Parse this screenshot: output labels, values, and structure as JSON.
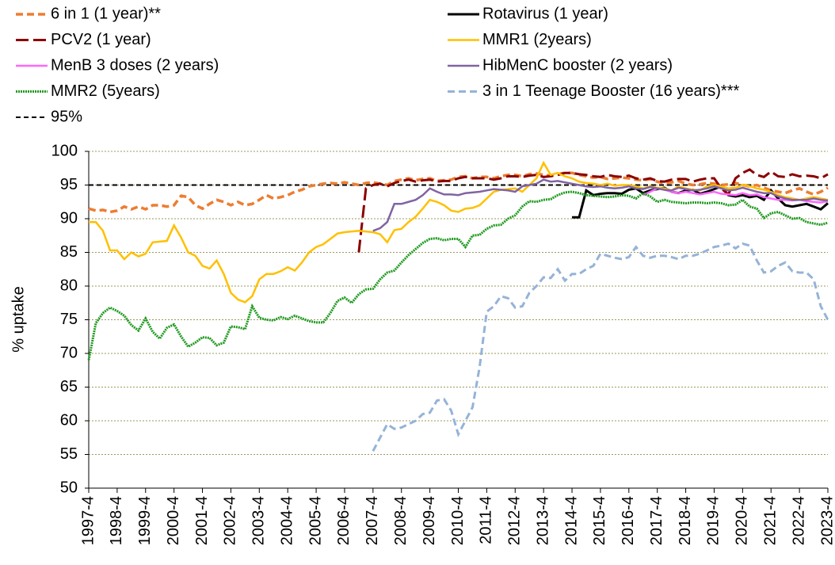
{
  "chart_data": {
    "type": "line",
    "y_label": "% uptake",
    "ylim": [
      50,
      100
    ],
    "yticks": [
      50,
      55,
      60,
      65,
      70,
      75,
      80,
      85,
      90,
      95,
      100
    ],
    "grid": true,
    "reference": {
      "name": "95%",
      "value": 95,
      "color": "#000000"
    },
    "categories": [
      "1997-4",
      null,
      null,
      null,
      "1998-4",
      null,
      null,
      null,
      "1999-4",
      null,
      null,
      null,
      "2000-4",
      null,
      null,
      null,
      "2001-4",
      null,
      null,
      null,
      "2002-4",
      null,
      null,
      null,
      "2003-4",
      null,
      null,
      null,
      "2004-4",
      null,
      null,
      null,
      "2005-4",
      null,
      null,
      null,
      "2006-4",
      null,
      null,
      null,
      "2007-4",
      null,
      null,
      null,
      "2008-4",
      null,
      null,
      null,
      "2009-4",
      null,
      null,
      null,
      "2010-4",
      null,
      null,
      null,
      "2011-4",
      null,
      null,
      null,
      "2012-4",
      null,
      null,
      null,
      "2013-4",
      null,
      null,
      null,
      "2014-4",
      null,
      null,
      null,
      "2015-4",
      null,
      null,
      null,
      "2016-4",
      null,
      null,
      null,
      "2017-4",
      null,
      null,
      null,
      "2018-4",
      null,
      null,
      null,
      "2019-4",
      null,
      null,
      null,
      "2020-4",
      null,
      null,
      null,
      "2021-4",
      null,
      null,
      null,
      "2022-4",
      null,
      null,
      null,
      "2023-4"
    ],
    "series": [
      {
        "name": "6 in 1 (1 year)**",
        "color": "#ed7d31",
        "values": [
          91.5,
          91.2,
          91.3,
          91.0,
          91.2,
          91.8,
          91.4,
          91.8,
          91.4,
          92.0,
          92.0,
          91.8,
          92.0,
          93.4,
          93.2,
          92.0,
          91.5,
          92.2,
          92.8,
          92.5,
          92.0,
          92.5,
          92.0,
          92.2,
          92.8,
          93.5,
          93.0,
          93.2,
          93.5,
          94.0,
          94.3,
          94.8,
          95.0,
          95.2,
          95.3,
          95.2,
          95.4,
          95.2,
          95.0,
          95.3,
          95.4,
          95.2,
          95.0,
          95.6,
          95.8,
          96.0,
          95.7,
          95.9,
          96.0,
          95.6,
          95.7,
          95.8,
          96.2,
          96.3,
          96.0,
          96.2,
          96.2,
          96.0,
          96.3,
          96.5,
          96.5,
          96.3,
          96.6,
          96.7,
          96.5,
          96.4,
          96.6,
          96.8,
          96.8,
          96.5,
          96.3,
          96.1,
          96.2,
          95.9,
          96.0,
          96.1,
          96.0,
          95.8,
          95.7,
          95.9,
          95.5,
          95.3,
          95.4,
          95.6,
          95.2,
          95.0,
          95.1,
          95.3,
          95.2,
          95.0,
          95.1,
          95.3,
          95.0,
          94.8,
          95.0,
          94.6,
          94.2,
          94.0,
          93.8,
          94.2,
          94.5,
          94.0,
          93.6,
          94.0,
          94.6
        ]
      },
      {
        "name": "Rotavirus (1 year)",
        "color": "#000000",
        "values": [
          null,
          null,
          null,
          null,
          null,
          null,
          null,
          null,
          null,
          null,
          null,
          null,
          null,
          null,
          null,
          null,
          null,
          null,
          null,
          null,
          null,
          null,
          null,
          null,
          null,
          null,
          null,
          null,
          null,
          null,
          null,
          null,
          null,
          null,
          null,
          null,
          null,
          null,
          null,
          null,
          null,
          null,
          null,
          null,
          null,
          null,
          null,
          null,
          null,
          null,
          null,
          null,
          null,
          null,
          null,
          null,
          null,
          null,
          null,
          null,
          null,
          null,
          null,
          null,
          null,
          null,
          null,
          null,
          90.2,
          90.2,
          94.2,
          93.5,
          93.7,
          93.8,
          93.8,
          93.7,
          94.3,
          94.5,
          93.8,
          94.2,
          94.4,
          94.6,
          94.0,
          93.8,
          94.2,
          94.3,
          93.7,
          94.0,
          94.4,
          94.8,
          93.5,
          93.3,
          93.5,
          93.2,
          93.4,
          92.8,
          94.2,
          93.0,
          92.0,
          91.8,
          92.0,
          92.2,
          91.8,
          91.4,
          92.3
        ]
      },
      {
        "name": "PCV2 (1 year)",
        "color": "#8b0000",
        "values": [
          null,
          null,
          null,
          null,
          null,
          null,
          null,
          null,
          null,
          null,
          null,
          null,
          null,
          null,
          null,
          null,
          null,
          null,
          null,
          null,
          null,
          null,
          null,
          null,
          null,
          null,
          null,
          null,
          null,
          null,
          null,
          null,
          null,
          null,
          null,
          null,
          null,
          null,
          85.0,
          94.5,
          95.0,
          95.2,
          94.8,
          95.3,
          95.6,
          95.8,
          95.5,
          95.7,
          95.8,
          95.5,
          95.6,
          95.6,
          96.0,
          96.2,
          96.0,
          96.0,
          96.0,
          95.8,
          96.0,
          96.3,
          96.3,
          96.2,
          96.4,
          96.5,
          96.2,
          96.3,
          96.5,
          96.8,
          96.8,
          96.6,
          96.5,
          96.3,
          96.2,
          96.5,
          96.3,
          96.2,
          96.4,
          96.0,
          95.8,
          96.0,
          95.6,
          95.5,
          95.8,
          95.9,
          95.9,
          95.5,
          95.8,
          96.0,
          96.0,
          94.5,
          93.6,
          96.0,
          96.8,
          97.3,
          96.5,
          96.2,
          97.0,
          96.3,
          96.2,
          96.6,
          96.3,
          96.4,
          96.3,
          96.0,
          96.6
        ]
      },
      {
        "name": "MMR1 (2years)",
        "color": "#ffc000",
        "values": [
          89.5,
          89.5,
          88.2,
          85.3,
          85.3,
          84.0,
          85.0,
          84.4,
          84.8,
          86.5,
          86.6,
          86.7,
          89.0,
          87.2,
          85.0,
          84.5,
          83.0,
          82.6,
          83.8,
          81.8,
          79.0,
          78.0,
          77.6,
          78.5,
          81.0,
          81.8,
          81.8,
          82.2,
          82.8,
          82.3,
          83.5,
          85.0,
          85.8,
          86.2,
          87.0,
          87.8,
          88.0,
          88.1,
          88.2,
          88.1,
          88.0,
          87.7,
          86.5,
          88.3,
          88.5,
          89.5,
          90.3,
          91.5,
          92.8,
          92.5,
          92.0,
          91.2,
          91.0,
          91.5,
          91.6,
          92.0,
          93.0,
          94.0,
          94.3,
          94.4,
          94.5,
          94.0,
          95.0,
          96.0,
          98.3,
          96.5,
          96.8,
          96.3,
          96.0,
          95.5,
          95.3,
          95.2,
          95.0,
          95.2,
          94.9,
          95.0,
          95.0,
          94.8,
          94.5,
          94.8,
          94.6,
          94.5,
          94.2,
          94.8,
          94.5,
          94.3,
          94.2,
          94.8,
          95.0,
          94.8,
          94.5,
          94.6,
          95.0,
          94.8,
          94.5,
          94.3,
          94.0,
          93.5,
          93.2,
          93.0,
          92.8,
          93.0,
          93.2,
          93.0,
          92.8
        ]
      },
      {
        "name": "MenB 3 doses (2 years)",
        "color": "#ff66ff",
        "values": [
          null,
          null,
          null,
          null,
          null,
          null,
          null,
          null,
          null,
          null,
          null,
          null,
          null,
          null,
          null,
          null,
          null,
          null,
          null,
          null,
          null,
          null,
          null,
          null,
          null,
          null,
          null,
          null,
          null,
          null,
          null,
          null,
          null,
          null,
          null,
          null,
          null,
          null,
          null,
          null,
          null,
          null,
          null,
          null,
          null,
          null,
          null,
          null,
          null,
          null,
          null,
          null,
          null,
          null,
          null,
          null,
          null,
          null,
          null,
          null,
          null,
          null,
          null,
          null,
          null,
          null,
          null,
          null,
          null,
          null,
          null,
          null,
          null,
          null,
          null,
          null,
          null,
          null,
          93.5,
          94.0,
          94.5,
          94.3,
          94.0,
          93.8,
          94.0,
          93.8,
          93.6,
          93.8,
          94.0,
          93.7,
          93.6,
          93.5,
          93.8,
          93.5,
          93.6,
          93.2,
          93.0,
          92.8,
          92.8,
          92.7,
          92.8,
          92.6,
          92.5,
          92.4,
          92.6
        ]
      },
      {
        "name": "HibMenC booster (2 years)",
        "color": "#8064a2",
        "values": [
          null,
          null,
          null,
          null,
          null,
          null,
          null,
          null,
          null,
          null,
          null,
          null,
          null,
          null,
          null,
          null,
          null,
          null,
          null,
          null,
          null,
          null,
          null,
          null,
          null,
          null,
          null,
          null,
          null,
          null,
          null,
          null,
          null,
          null,
          null,
          null,
          null,
          null,
          null,
          null,
          88.2,
          88.6,
          89.5,
          92.2,
          92.2,
          92.5,
          92.8,
          93.5,
          94.5,
          94.0,
          93.6,
          93.6,
          93.5,
          93.8,
          93.9,
          94.0,
          94.2,
          94.4,
          94.3,
          94.2,
          94.0,
          94.8,
          95.0,
          95.2,
          95.8,
          95.5,
          95.6,
          95.4,
          95.2,
          95.0,
          94.8,
          94.7,
          94.8,
          94.6,
          94.5,
          94.6,
          94.8,
          94.5,
          94.4,
          94.7,
          94.5,
          94.3,
          94.2,
          94.6,
          94.4,
          94.2,
          94.3,
          94.5,
          94.8,
          94.5,
          94.2,
          94.3,
          94.6,
          94.3,
          94.0,
          93.8,
          93.8,
          93.3,
          93.0,
          92.8,
          92.8,
          92.8,
          93.0,
          92.8,
          92.7
        ]
      },
      {
        "name": "MMR2 (5years)",
        "color": "#1e9a1e",
        "values": [
          69.0,
          74.5,
          76.0,
          76.8,
          76.3,
          75.6,
          74.2,
          73.4,
          75.2,
          73.2,
          72.2,
          73.8,
          74.3,
          72.5,
          71.0,
          71.6,
          72.4,
          72.3,
          71.2,
          71.6,
          74.0,
          73.9,
          73.6,
          77.0,
          75.3,
          75.0,
          74.9,
          75.4,
          75.1,
          75.6,
          75.2,
          74.8,
          74.6,
          74.6,
          76.0,
          77.8,
          78.3,
          77.5,
          78.8,
          79.5,
          79.6,
          81.0,
          82.0,
          82.3,
          83.5,
          84.6,
          85.5,
          86.4,
          87.0,
          87.1,
          86.8,
          87.0,
          87.0,
          85.8,
          87.5,
          87.6,
          88.5,
          89.0,
          89.1,
          90.0,
          90.5,
          91.8,
          92.6,
          92.5,
          92.8,
          92.9,
          93.5,
          93.9,
          94.0,
          93.8,
          93.5,
          93.4,
          93.3,
          93.2,
          93.3,
          93.5,
          93.4,
          93.0,
          93.8,
          93.3,
          92.5,
          92.8,
          92.5,
          92.4,
          92.3,
          92.4,
          92.4,
          92.3,
          92.4,
          92.3,
          92.0,
          92.1,
          92.8,
          91.8,
          91.5,
          90.1,
          90.8,
          91.0,
          90.5,
          90.0,
          90.1,
          89.5,
          89.3,
          89.1,
          89.4
        ]
      },
      {
        "name": "3 in 1 Teenage Booster (16 years)***",
        "color": "#95b3d7",
        "values": [
          null,
          null,
          null,
          null,
          null,
          null,
          null,
          null,
          null,
          null,
          null,
          null,
          null,
          null,
          null,
          null,
          null,
          null,
          null,
          null,
          null,
          null,
          null,
          null,
          null,
          null,
          null,
          null,
          null,
          null,
          null,
          null,
          null,
          null,
          null,
          null,
          null,
          null,
          null,
          null,
          55.5,
          57.5,
          59.5,
          58.8,
          59.0,
          59.5,
          60.0,
          61.0,
          61.2,
          63.0,
          63.2,
          61.5,
          58.0,
          60.0,
          62.0,
          68.0,
          76.2,
          77.0,
          78.5,
          78.2,
          76.8,
          77.0,
          79.0,
          80.0,
          81.3,
          81.2,
          82.5,
          80.8,
          81.8,
          81.8,
          82.5,
          83.0,
          84.8,
          84.5,
          84.2,
          84.0,
          84.3,
          85.8,
          84.5,
          84.2,
          84.5,
          84.5,
          84.3,
          84.0,
          84.5,
          84.5,
          84.8,
          85.3,
          85.8,
          86.0,
          86.3,
          85.6,
          86.3,
          86.0,
          83.8,
          82.0,
          82.2,
          83.0,
          83.5,
          82.2,
          82.0,
          82.0,
          81.0,
          77.0,
          75.0
        ]
      }
    ]
  }
}
